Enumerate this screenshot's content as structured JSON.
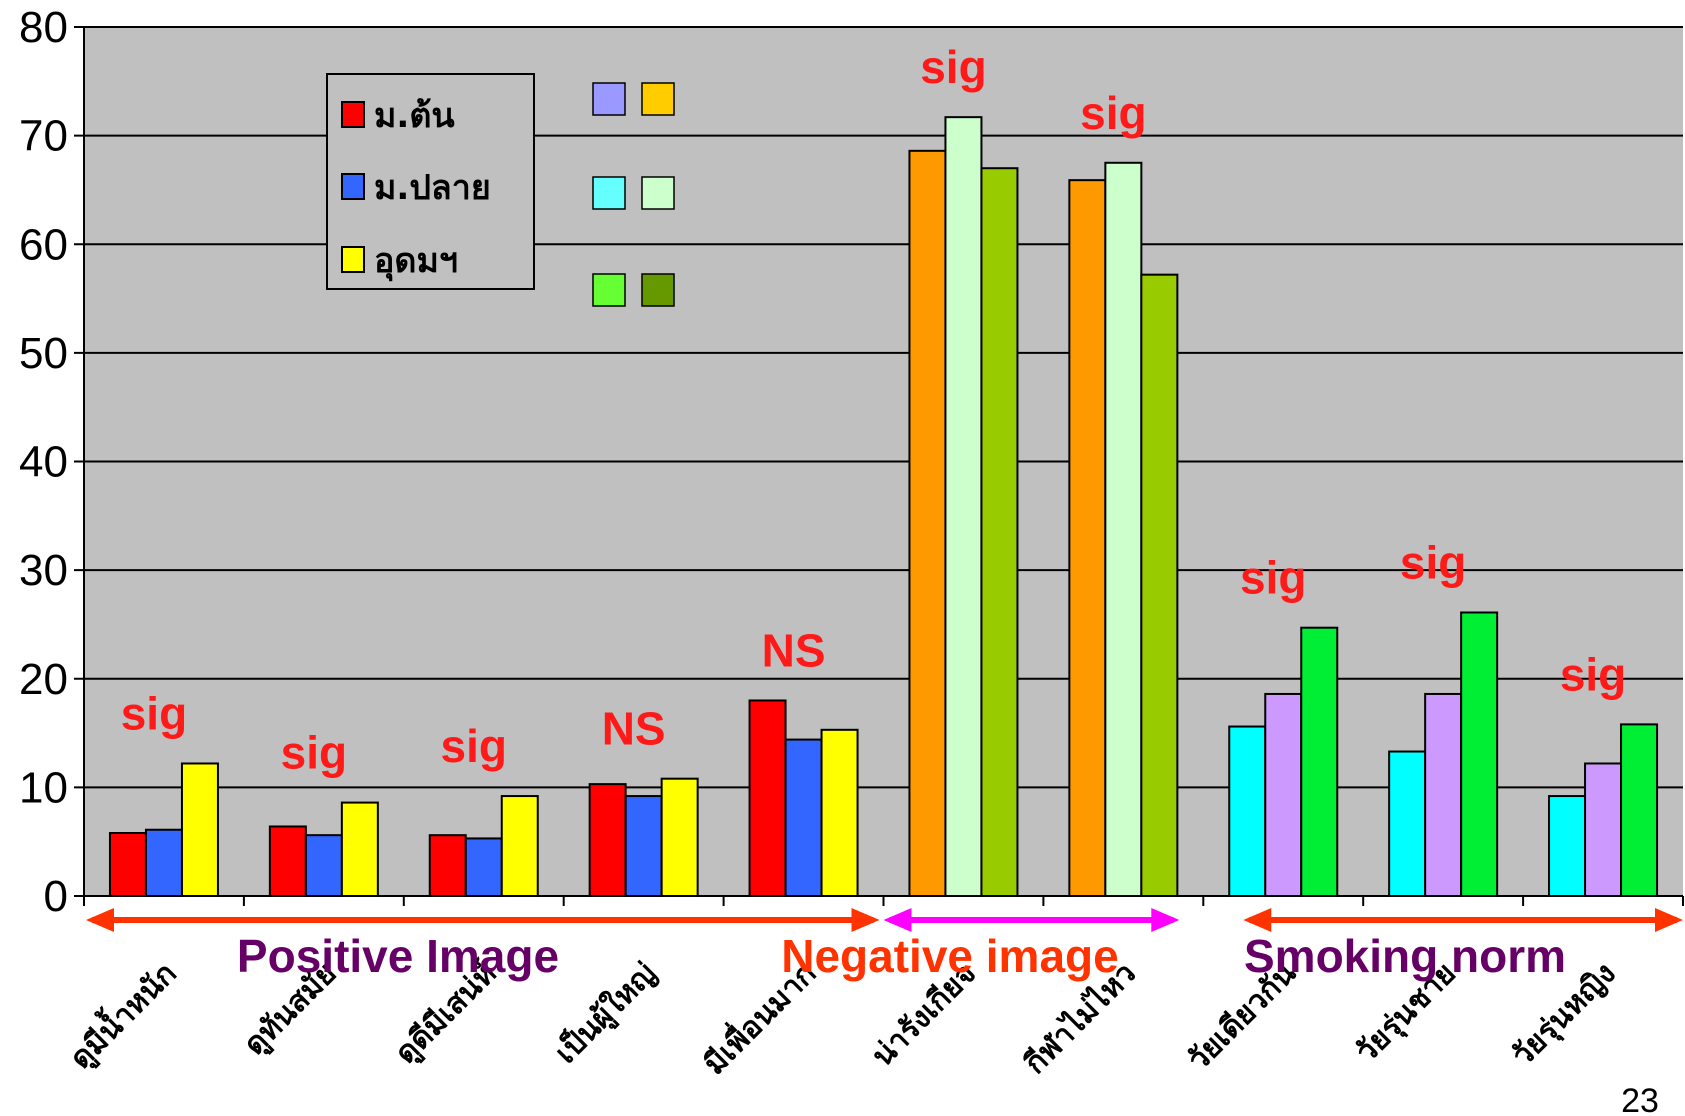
{
  "chart_data": {
    "type": "bar",
    "title": "",
    "xlabel": "",
    "ylabel": "",
    "ylim": [
      0,
      80
    ],
    "yticks": [
      0,
      10,
      20,
      30,
      40,
      50,
      60,
      70,
      80
    ],
    "grid": true,
    "categories": [
      "ดูมีน้ำหนัก",
      "ดูทันสมัย",
      "ดูดีมีเสน่ห์",
      "เป็นผู้ใหญ่",
      "มีเพื่อนมาก",
      "น่ารังเกียจ",
      "กีฬาไม่ไหว",
      "วัยเดียวกัน",
      "วัยรุ่นชาย",
      "วัยรุ่นหญิง"
    ],
    "series": [
      {
        "name": "ม.ต้น",
        "values": [
          5.8,
          6.4,
          5.6,
          10.3,
          18.0,
          68.6,
          65.9,
          15.6,
          13.3,
          9.2
        ]
      },
      {
        "name": "ม.ปลาย",
        "values": [
          6.1,
          5.6,
          5.3,
          9.2,
          14.4,
          71.7,
          67.5,
          18.6,
          18.6,
          12.2
        ]
      },
      {
        "name": "อุดมฯ",
        "values": [
          12.2,
          8.6,
          9.2,
          10.8,
          15.3,
          67.0,
          57.2,
          24.7,
          26.1,
          15.8
        ]
      }
    ],
    "bar_colors": [
      [
        "#ff0000",
        "#3366ff",
        "#ffff00"
      ],
      [
        "#ff0000",
        "#3366ff",
        "#ffff00"
      ],
      [
        "#ff0000",
        "#3366ff",
        "#ffff00"
      ],
      [
        "#ff0000",
        "#3366ff",
        "#ffff00"
      ],
      [
        "#ff0000",
        "#3366ff",
        "#ffff00"
      ],
      [
        "#ff9900",
        "#ccffcc",
        "#99cc00"
      ],
      [
        "#ff9900",
        "#ccffcc",
        "#99cc00"
      ],
      [
        "#00ffff",
        "#cc99ff",
        "#00ee33"
      ],
      [
        "#00ffff",
        "#cc99ff",
        "#00ee33"
      ],
      [
        "#00ffff",
        "#cc99ff",
        "#00ee33"
      ]
    ],
    "annotations": [
      "sig",
      "sig",
      "sig",
      "NS",
      "NS",
      "sig",
      "sig",
      "sig",
      "sig",
      "sig"
    ],
    "groups": [
      {
        "label": "Positive Image",
        "color": "#660066",
        "arrow_color": "#ff3300"
      },
      {
        "label": "Negative image",
        "color": "#ff3300",
        "arrow_color": "#ff00ff"
      },
      {
        "label": "Smoking norm",
        "color": "#660066",
        "arrow_color": "#ff3300"
      }
    ],
    "legend": {
      "placement": "top-left",
      "entries": [
        {
          "label": "ม.ต้น",
          "color": "#ff0000"
        },
        {
          "label": "ม.ปลาย",
          "color": "#3366ff"
        },
        {
          "label": "อุดมฯ",
          "color": "#ffff00"
        }
      ]
    },
    "swatches": [
      [
        "#9999ff",
        "#ffcc00"
      ],
      [
        "#66ffff",
        "#ccffcc"
      ],
      [
        "#66ff33",
        "#669900"
      ]
    ],
    "plot_bg": "#c0c0c0"
  },
  "page_number": "23"
}
